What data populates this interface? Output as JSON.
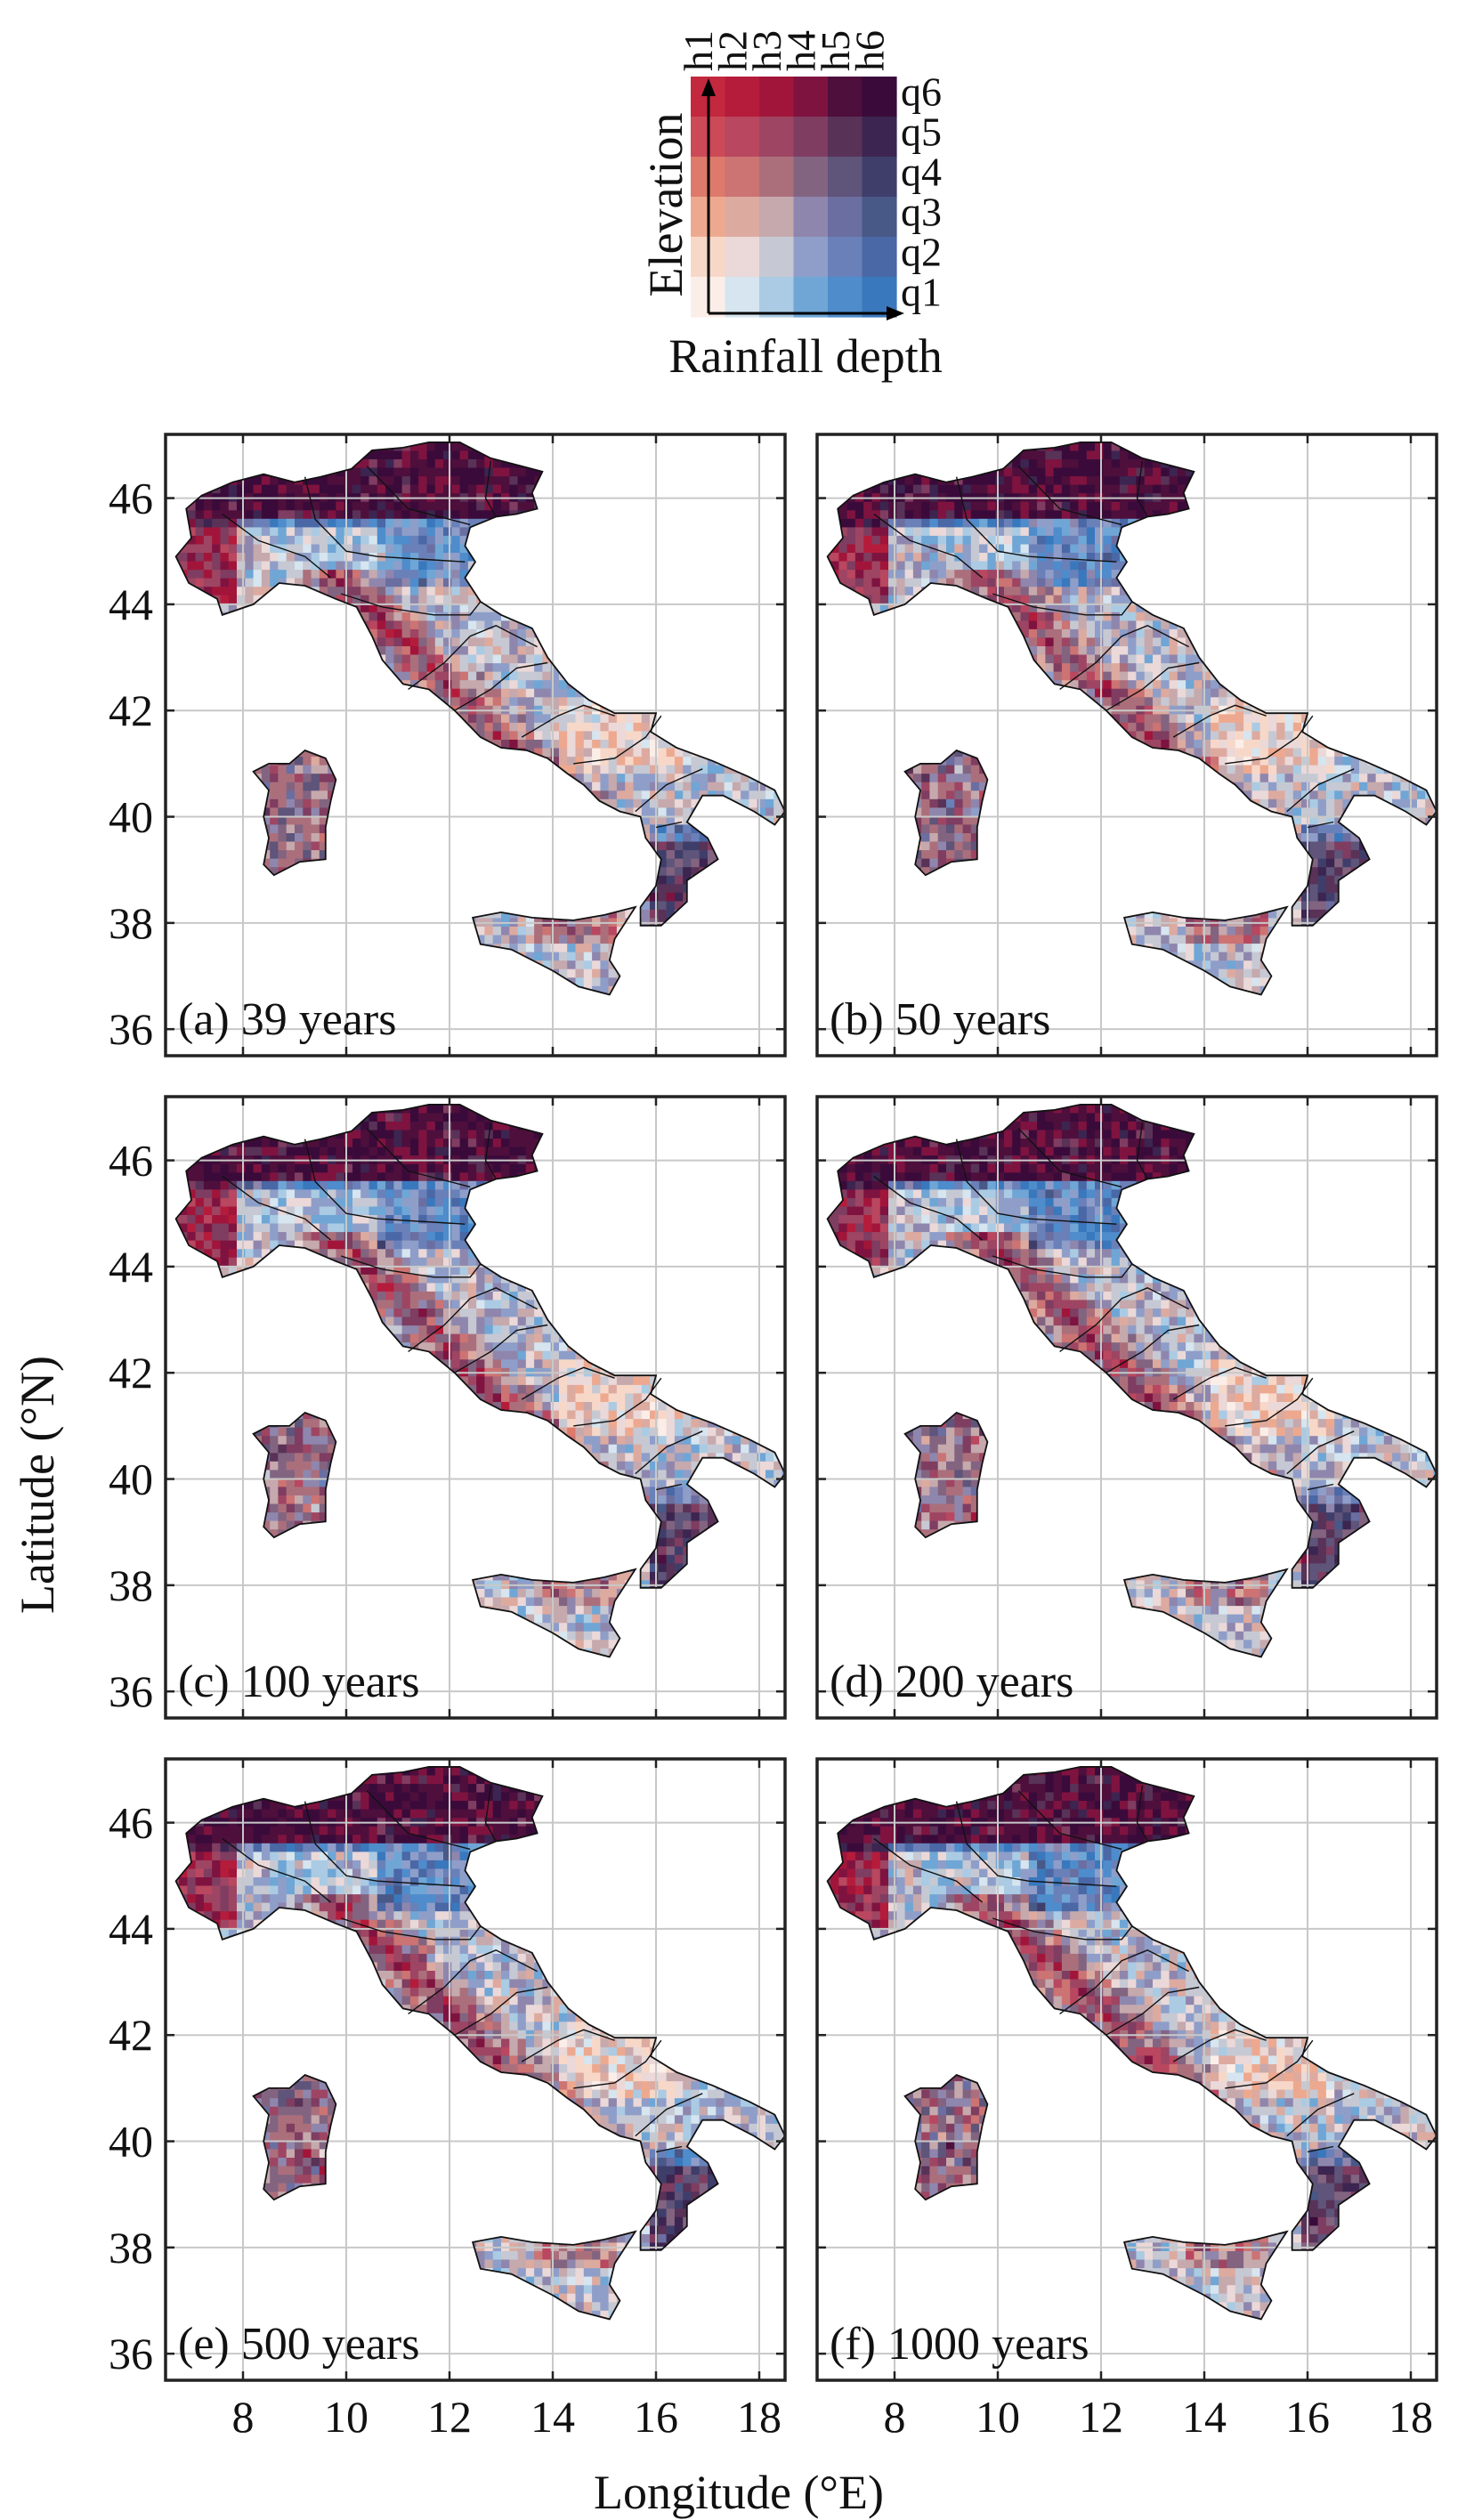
{
  "figure": {
    "xlabel": "Longitude (°E)",
    "ylabel": "Latitude (°N)"
  },
  "legend": {
    "elevation_label": "Elevation",
    "rainfall_label": "Rainfall depth",
    "h_labels": [
      "h1",
      "h2",
      "h3",
      "h4",
      "h5",
      "h6"
    ],
    "q_labels": [
      "q6",
      "q5",
      "q4",
      "q3",
      "q2",
      "q1"
    ],
    "colors": [
      [
        "#c3283e",
        "#b51c3b",
        "#a2153a",
        "#7f1340",
        "#4e0f3c",
        "#3a0b3a"
      ],
      [
        "#cc4a58",
        "#b8475f",
        "#9e4563",
        "#7f3d61",
        "#593258",
        "#3c2550"
      ],
      [
        "#dd7a6b",
        "#cc7373",
        "#ab6f7c",
        "#826481",
        "#5f5479",
        "#3f3e6b"
      ],
      [
        "#eda98f",
        "#ddaaa0",
        "#c6a9ad",
        "#8f86ad",
        "#6b6ea0",
        "#485887"
      ],
      [
        "#f7d8c8",
        "#ebd8d8",
        "#c6c9d3",
        "#8e9ec9",
        "#6a80b9",
        "#4a67a6"
      ],
      [
        "#fbeee9",
        "#d6e5ef",
        "#aacbe3",
        "#6fa6d5",
        "#4e8ccc",
        "#3a78bd"
      ]
    ]
  },
  "map_axes": {
    "xlim": [
      6.5,
      18.5
    ],
    "ylim": [
      35.5,
      47.2
    ],
    "xticks": [
      8,
      10,
      12,
      14,
      16,
      18
    ],
    "yticks": [
      36,
      38,
      40,
      42,
      44,
      46
    ]
  },
  "panels": [
    {
      "label": "(a) 39 years"
    },
    {
      "label": "(b) 50 years"
    },
    {
      "label": "(c) 100 years"
    },
    {
      "label": "(d) 200 years"
    },
    {
      "label": "(e) 500 years"
    },
    {
      "label": "(f) 1000 years"
    }
  ],
  "coastlines": {
    "mainland": [
      [
        6.9,
        45.8
      ],
      [
        7.2,
        46.05
      ],
      [
        7.8,
        46.3
      ],
      [
        8.4,
        46.45
      ],
      [
        9.0,
        46.3
      ],
      [
        9.5,
        46.4
      ],
      [
        10.1,
        46.55
      ],
      [
        10.5,
        46.9
      ],
      [
        11.1,
        46.95
      ],
      [
        11.6,
        47.05
      ],
      [
        12.2,
        47.05
      ],
      [
        12.8,
        46.75
      ],
      [
        13.4,
        46.6
      ],
      [
        13.8,
        46.5
      ],
      [
        13.6,
        46.1
      ],
      [
        13.7,
        45.8
      ],
      [
        13.3,
        45.7
      ],
      [
        12.9,
        45.65
      ],
      [
        12.4,
        45.45
      ],
      [
        12.3,
        45.1
      ],
      [
        12.5,
        44.8
      ],
      [
        12.3,
        44.5
      ],
      [
        12.6,
        44.05
      ],
      [
        13.0,
        43.8
      ],
      [
        13.6,
        43.55
      ],
      [
        13.9,
        43.0
      ],
      [
        14.3,
        42.5
      ],
      [
        14.7,
        42.2
      ],
      [
        15.2,
        41.95
      ],
      [
        16.0,
        41.95
      ],
      [
        15.9,
        41.6
      ],
      [
        16.4,
        41.3
      ],
      [
        17.1,
        41.05
      ],
      [
        17.8,
        40.75
      ],
      [
        18.3,
        40.5
      ],
      [
        18.5,
        40.1
      ],
      [
        18.3,
        39.85
      ],
      [
        17.9,
        40.1
      ],
      [
        17.3,
        40.4
      ],
      [
        16.9,
        40.4
      ],
      [
        16.6,
        39.9
      ],
      [
        17.0,
        39.6
      ],
      [
        17.2,
        39.2
      ],
      [
        16.6,
        38.8
      ],
      [
        16.6,
        38.4
      ],
      [
        16.1,
        37.95
      ],
      [
        15.7,
        37.95
      ],
      [
        15.7,
        38.3
      ],
      [
        16.0,
        38.7
      ],
      [
        16.1,
        39.2
      ],
      [
        15.8,
        39.6
      ],
      [
        15.7,
        40.0
      ],
      [
        15.3,
        40.1
      ],
      [
        14.9,
        40.3
      ],
      [
        14.6,
        40.6
      ],
      [
        14.3,
        40.8
      ],
      [
        13.9,
        41.1
      ],
      [
        13.5,
        41.25
      ],
      [
        13.0,
        41.3
      ],
      [
        12.6,
        41.5
      ],
      [
        12.1,
        42.0
      ],
      [
        11.6,
        42.4
      ],
      [
        11.1,
        42.5
      ],
      [
        10.7,
        42.95
      ],
      [
        10.5,
        43.4
      ],
      [
        10.2,
        43.95
      ],
      [
        9.8,
        44.1
      ],
      [
        9.2,
        44.35
      ],
      [
        8.7,
        44.4
      ],
      [
        8.2,
        44.0
      ],
      [
        7.6,
        43.8
      ],
      [
        7.5,
        44.1
      ],
      [
        6.95,
        44.4
      ],
      [
        6.7,
        44.9
      ],
      [
        7.0,
        45.25
      ],
      [
        6.9,
        45.8
      ]
    ],
    "sardinia": [
      [
        9.2,
        41.25
      ],
      [
        9.6,
        41.1
      ],
      [
        9.8,
        40.7
      ],
      [
        9.7,
        40.3
      ],
      [
        9.6,
        39.8
      ],
      [
        9.6,
        39.2
      ],
      [
        9.1,
        39.15
      ],
      [
        8.6,
        38.9
      ],
      [
        8.4,
        39.1
      ],
      [
        8.5,
        39.6
      ],
      [
        8.4,
        40.0
      ],
      [
        8.5,
        40.5
      ],
      [
        8.2,
        40.85
      ],
      [
        8.5,
        41.0
      ],
      [
        8.9,
        41.0
      ],
      [
        9.2,
        41.25
      ]
    ],
    "sicily": [
      [
        12.45,
        38.1
      ],
      [
        13.0,
        38.2
      ],
      [
        13.6,
        38.1
      ],
      [
        14.4,
        38.05
      ],
      [
        15.0,
        38.15
      ],
      [
        15.6,
        38.3
      ],
      [
        15.2,
        37.7
      ],
      [
        15.1,
        37.3
      ],
      [
        15.3,
        37.0
      ],
      [
        15.1,
        36.65
      ],
      [
        14.5,
        36.8
      ],
      [
        14.0,
        37.1
      ],
      [
        13.2,
        37.5
      ],
      [
        12.6,
        37.6
      ],
      [
        12.45,
        38.1
      ]
    ],
    "regions": [
      [
        [
          7.6,
          45.7
        ],
        [
          8.3,
          45.2
        ],
        [
          9.2,
          44.9
        ],
        [
          9.7,
          44.5
        ]
      ],
      [
        [
          9.2,
          46.4
        ],
        [
          9.4,
          45.6
        ],
        [
          10.0,
          45.0
        ],
        [
          10.6,
          44.9
        ],
        [
          12.3,
          44.8
        ]
      ],
      [
        [
          10.4,
          46.6
        ],
        [
          11.2,
          45.8
        ],
        [
          12.4,
          45.5
        ]
      ],
      [
        [
          12.8,
          46.7
        ],
        [
          12.7,
          46.0
        ],
        [
          12.9,
          45.65
        ]
      ],
      [
        [
          9.9,
          44.2
        ],
        [
          10.7,
          43.95
        ],
        [
          11.7,
          43.8
        ],
        [
          12.4,
          43.8
        ],
        [
          12.6,
          44.05
        ]
      ],
      [
        [
          11.2,
          42.4
        ],
        [
          11.9,
          42.9
        ],
        [
          12.4,
          43.4
        ],
        [
          12.9,
          43.6
        ],
        [
          13.7,
          43.2
        ]
      ],
      [
        [
          12.1,
          42.0
        ],
        [
          12.8,
          42.4
        ],
        [
          13.3,
          42.8
        ],
        [
          13.9,
          42.9
        ]
      ],
      [
        [
          13.4,
          41.5
        ],
        [
          14.1,
          41.9
        ],
        [
          14.6,
          42.1
        ],
        [
          15.2,
          41.9
        ]
      ],
      [
        [
          14.4,
          41.0
        ],
        [
          15.2,
          41.1
        ],
        [
          15.8,
          41.5
        ],
        [
          16.1,
          41.9
        ]
      ],
      [
        [
          15.6,
          40.1
        ],
        [
          16.2,
          40.6
        ],
        [
          16.9,
          40.9
        ]
      ],
      [
        [
          16.0,
          39.8
        ],
        [
          16.5,
          39.9
        ]
      ]
    ]
  }
}
